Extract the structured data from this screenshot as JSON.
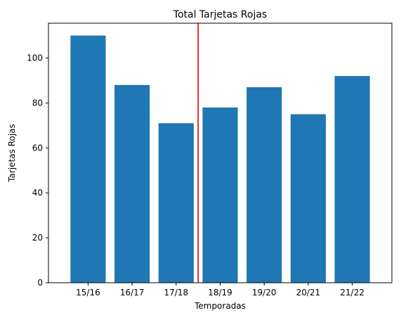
{
  "chart_data": {
    "type": "bar",
    "title": "Total Tarjetas Rojas",
    "xlabel": "Temporadas",
    "ylabel": "Tarjetas Rojas",
    "categories": [
      "15/16",
      "16/17",
      "17/18",
      "18/19",
      "19/20",
      "20/21",
      "21/22"
    ],
    "values": [
      110,
      88,
      71,
      78,
      87,
      75,
      92
    ],
    "ylim": [
      0,
      115.5
    ],
    "yticks": [
      0,
      20,
      40,
      60,
      80,
      100
    ],
    "bar_color": "#1f77b4",
    "reference_line": {
      "orientation": "vertical",
      "x": 2.5,
      "color": "#e8171f"
    },
    "grid": false,
    "legend": "none"
  }
}
